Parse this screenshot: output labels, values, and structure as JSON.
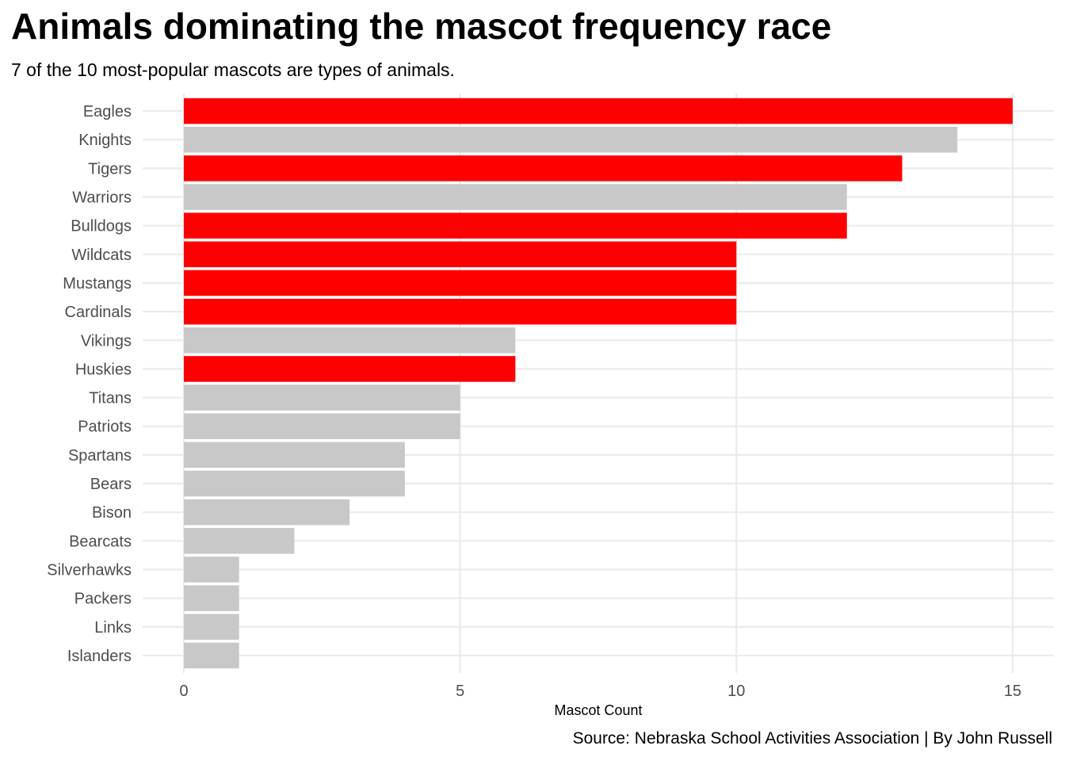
{
  "chart_data": {
    "type": "bar",
    "orientation": "horizontal",
    "title": "Animals dominating the mascot frequency race",
    "subtitle": "7 of the 10 most-popular mascots are types of animals.",
    "xlabel": "Mascot Count",
    "ylabel": "",
    "caption": "Source: Nebraska School Activities Association | By John Russell",
    "xlim": [
      0,
      15.8
    ],
    "x_ticks": [
      0,
      5,
      10,
      15
    ],
    "x_tick_labels": [
      "0",
      "5",
      "10",
      "15"
    ],
    "grid": true,
    "legend": "none",
    "colors": {
      "highlight": "#ff0000",
      "default": "#c8c8c8",
      "grid": "#ebebeb",
      "axis_text": "#4d4d4d"
    },
    "categories": [
      "Eagles",
      "Knights",
      "Tigers",
      "Warriors",
      "Bulldogs",
      "Wildcats",
      "Mustangs",
      "Cardinals",
      "Vikings",
      "Huskies",
      "Titans",
      "Patriots",
      "Spartans",
      "Bears",
      "Bison",
      "Bearcats",
      "Silverhawks",
      "Packers",
      "Links",
      "Islanders"
    ],
    "values": [
      15,
      14,
      13,
      12,
      12,
      10,
      10,
      10,
      6,
      6,
      5,
      5,
      4,
      4,
      3,
      2,
      1,
      1,
      1,
      1
    ],
    "highlighted": [
      true,
      false,
      true,
      false,
      true,
      true,
      true,
      true,
      false,
      true,
      false,
      false,
      false,
      false,
      false,
      false,
      false,
      false,
      false,
      false
    ]
  }
}
